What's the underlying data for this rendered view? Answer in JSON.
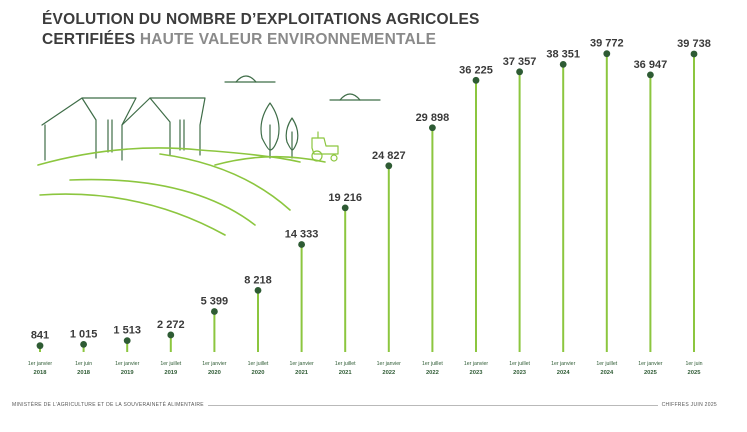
{
  "title": {
    "line1": "ÉVOLUTION DU NOMBRE D’EXPLOITATIONS AGRICOLES",
    "line2_dark": "CERTIFIÉES",
    "line2_light": "HAUTE VALEUR ENVIRONNEMENTALE"
  },
  "chart_data": {
    "type": "lollipop",
    "ylim": [
      0,
      40000
    ],
    "colors": {
      "stem": "#8cc63f",
      "dot": "#2e5b34",
      "label": "#3a3a3a",
      "date": "#2e5b34",
      "illustration": "#3f6d48",
      "hills": "#8cc63f",
      "tractor": "#8cc63f"
    },
    "points": [
      {
        "value": 841,
        "label": "841",
        "date_line1": "1er janvier",
        "date_line2": "2018"
      },
      {
        "value": 1015,
        "label": "1 015",
        "date_line1": "1er juin",
        "date_line2": "2018"
      },
      {
        "value": 1513,
        "label": "1 513",
        "date_line1": "1er janvier",
        "date_line2": "2019"
      },
      {
        "value": 2272,
        "label": "2 272",
        "date_line1": "1er juillet",
        "date_line2": "2019"
      },
      {
        "value": 5399,
        "label": "5 399",
        "date_line1": "1er janvier",
        "date_line2": "2020"
      },
      {
        "value": 8218,
        "label": "8 218",
        "date_line1": "1er juillet",
        "date_line2": "2020"
      },
      {
        "value": 14333,
        "label": "14 333",
        "date_line1": "1er janvier",
        "date_line2": "2021"
      },
      {
        "value": 19216,
        "label": "19 216",
        "date_line1": "1er juillet",
        "date_line2": "2021"
      },
      {
        "value": 24827,
        "label": "24 827",
        "date_line1": "1er janvier",
        "date_line2": "2022"
      },
      {
        "value": 29898,
        "label": "29 898",
        "date_line1": "1er juillet",
        "date_line2": "2022"
      },
      {
        "value": 36225,
        "label": "36 225",
        "date_line1": "1er janvier",
        "date_line2": "2023"
      },
      {
        "value": 37357,
        "label": "37 357",
        "date_line1": "1er juillet",
        "date_line2": "2023"
      },
      {
        "value": 38351,
        "label": "38 351",
        "date_line1": "1er janvier",
        "date_line2": "2024"
      },
      {
        "value": 39772,
        "label": "39 772",
        "date_line1": "1er juillet",
        "date_line2": "2024"
      },
      {
        "value": 36947,
        "label": "36 947",
        "date_line1": "1er janvier",
        "date_line2": "2025"
      },
      {
        "value": 39738,
        "label": "39 738",
        "date_line1": "1er juin",
        "date_line2": "2025"
      }
    ]
  },
  "footer": {
    "source": "MINISTÈRE DE L’AGRICULTURE ET DE LA SOUVERAINETÉ ALIMENTAIRE",
    "date": "CHIFFRES JUIN 2025"
  }
}
